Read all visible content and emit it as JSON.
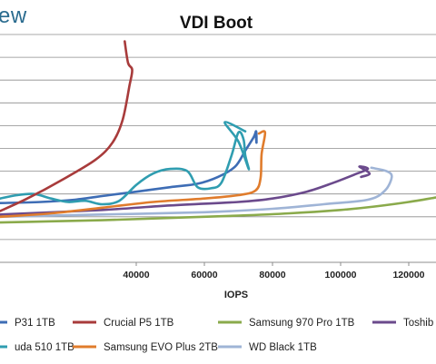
{
  "brand": {
    "logo_fragment": "ew"
  },
  "chart_data": {
    "type": "line",
    "title": "VDI Boot",
    "xlabel": "IOPS",
    "ylabel": "",
    "xlim": [
      0,
      128000
    ],
    "ylim": [
      0,
      20
    ],
    "x_ticks": [
      "40000",
      "60000",
      "80000",
      "100000",
      "120000"
    ],
    "x_tick_values": [
      40000,
      60000,
      80000,
      100000,
      120000
    ],
    "gridlines": [
      1,
      2,
      3,
      4,
      5,
      6,
      7,
      8,
      9,
      10
    ],
    "grid": true,
    "legend_position": "bottom",
    "series": [
      {
        "name": "P31 1TB",
        "color": "#3e6db5",
        "points": [
          [
            0,
            5.2
          ],
          [
            12000,
            5.3
          ],
          [
            22000,
            5.5
          ],
          [
            32000,
            5.9
          ],
          [
            40000,
            6.2
          ],
          [
            50000,
            6.6
          ],
          [
            58000,
            6.9
          ],
          [
            64000,
            7.5
          ],
          [
            69000,
            8.4
          ],
          [
            72000,
            9.8
          ],
          [
            74500,
            11.0
          ],
          [
            75200,
            11.5
          ],
          [
            75300,
            10.5
          ],
          [
            75100,
            11.2
          ]
        ]
      },
      {
        "name": "Crucial P5 1TB",
        "color": "#a83b3b",
        "points": [
          [
            0,
            4.5
          ],
          [
            8000,
            5.6
          ],
          [
            18000,
            7.2
          ],
          [
            28000,
            9.0
          ],
          [
            33000,
            10.5
          ],
          [
            36000,
            12.5
          ],
          [
            38000,
            15.5
          ],
          [
            38800,
            16.9
          ],
          [
            37600,
            17.5
          ],
          [
            36600,
            19.4
          ]
        ]
      },
      {
        "name": "Samsung 970 Pro 1TB",
        "color": "#8aaa4b",
        "points": [
          [
            0,
            3.5
          ],
          [
            15000,
            3.6
          ],
          [
            30000,
            3.7
          ],
          [
            50000,
            3.9
          ],
          [
            70000,
            4.1
          ],
          [
            85000,
            4.3
          ],
          [
            100000,
            4.6
          ],
          [
            110000,
            4.9
          ],
          [
            120000,
            5.3
          ],
          [
            128000,
            5.7
          ]
        ]
      },
      {
        "name": "Toshiba",
        "color": "#6b4a8c",
        "points": [
          [
            0,
            4.2
          ],
          [
            30000,
            4.6
          ],
          [
            50000,
            5.0
          ],
          [
            70000,
            5.3
          ],
          [
            80000,
            5.6
          ],
          [
            90000,
            6.2
          ],
          [
            98000,
            7.0
          ],
          [
            104000,
            7.7
          ],
          [
            108000,
            8.2
          ],
          [
            105500,
            8.4
          ],
          [
            108500,
            7.8
          ],
          [
            106000,
            7.5
          ]
        ]
      },
      {
        "name": "Samsung EVO Plus 2TB",
        "color": "#e07c2c",
        "points": [
          [
            0,
            4.0
          ],
          [
            15000,
            4.3
          ],
          [
            30000,
            4.8
          ],
          [
            45000,
            5.3
          ],
          [
            60000,
            5.6
          ],
          [
            70000,
            5.9
          ],
          [
            75000,
            6.3
          ],
          [
            76500,
            7.4
          ],
          [
            76800,
            9.5
          ],
          [
            77800,
            11.4
          ],
          [
            76000,
            11.3
          ]
        ]
      },
      {
        "name": "WD Black 1TB",
        "color": "#9fb4d6",
        "points": [
          [
            0,
            4.0
          ],
          [
            30000,
            4.2
          ],
          [
            60000,
            4.4
          ],
          [
            80000,
            4.7
          ],
          [
            95000,
            5.1
          ],
          [
            108000,
            5.5
          ],
          [
            113000,
            6.3
          ],
          [
            115000,
            7.5
          ],
          [
            113500,
            8.0
          ],
          [
            109000,
            8.3
          ]
        ]
      },
      {
        "name": "uda 510 1TB",
        "color": "#2f9db0",
        "points": [
          [
            0,
            5.6
          ],
          [
            5000,
            5.9
          ],
          [
            10000,
            6.0
          ],
          [
            15000,
            5.6
          ],
          [
            20000,
            5.3
          ],
          [
            25000,
            5.4
          ],
          [
            30000,
            5.1
          ],
          [
            35000,
            5.4
          ],
          [
            40000,
            6.8
          ],
          [
            45000,
            7.8
          ],
          [
            50000,
            8.2
          ],
          [
            55000,
            8.0
          ],
          [
            58000,
            6.6
          ],
          [
            62000,
            6.5
          ],
          [
            65000,
            7.0
          ],
          [
            68000,
            9.4
          ],
          [
            70000,
            11.4
          ],
          [
            71500,
            10.8
          ],
          [
            72000,
            9.4
          ],
          [
            73000,
            8.2
          ],
          [
            70000,
            10.6
          ],
          [
            66000,
            12.3
          ],
          [
            72000,
            11.5
          ]
        ]
      }
    ],
    "legend": [
      {
        "label": "P31 1TB",
        "color": "#3e6db5"
      },
      {
        "label": "Crucial P5 1TB",
        "color": "#a83b3b"
      },
      {
        "label": "Samsung 970 Pro 1TB",
        "color": "#8aaa4b"
      },
      {
        "label": "Toshib",
        "color": "#6b4a8c"
      },
      {
        "label": "uda 510 1TB",
        "color": "#2f9db0"
      },
      {
        "label": "Samsung EVO Plus 2TB",
        "color": "#e07c2c"
      },
      {
        "label": "WD Black 1TB",
        "color": "#9fb4d6"
      }
    ]
  }
}
